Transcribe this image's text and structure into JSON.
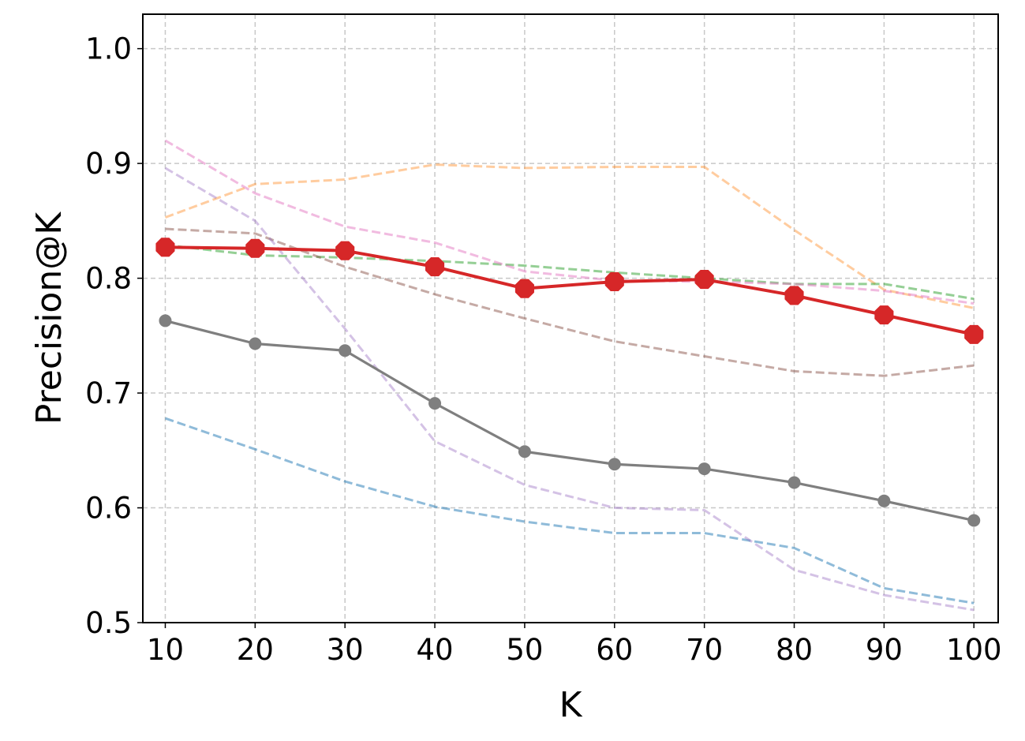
{
  "chart_data": {
    "type": "line",
    "title": "",
    "xlabel": "K",
    "ylabel": "Precision@K",
    "x": [
      10,
      20,
      30,
      40,
      50,
      60,
      70,
      80,
      90,
      100
    ],
    "xlim": [
      7.5,
      102.7
    ],
    "ylim": [
      0.5,
      1.03
    ],
    "xticks": [
      "10",
      "20",
      "30",
      "40",
      "50",
      "60",
      "70",
      "80",
      "90",
      "100"
    ],
    "yticks": [
      "0.5",
      "0.6",
      "0.7",
      "0.8",
      "0.9",
      "1.0"
    ],
    "grid": true,
    "legend": false,
    "series": [
      {
        "color": "#1f77b4",
        "style": "dashed",
        "opacity": 0.5,
        "values": [
          0.678,
          0.651,
          0.623,
          0.601,
          0.588,
          0.578,
          0.578,
          0.565,
          0.53,
          0.517
        ]
      },
      {
        "color": "#ff7f0e",
        "style": "dashed",
        "opacity": 0.4,
        "values": [
          0.853,
          0.882,
          0.886,
          0.899,
          0.896,
          0.897,
          0.897,
          0.842,
          0.79,
          0.774
        ]
      },
      {
        "color": "#2ca02c",
        "style": "dashed",
        "opacity": 0.5,
        "values": [
          0.829,
          0.82,
          0.818,
          0.815,
          0.811,
          0.805,
          0.8,
          0.795,
          0.795,
          0.782
        ]
      },
      {
        "color": "#8c564b",
        "style": "dashed",
        "opacity": 0.5,
        "values": [
          0.843,
          0.839,
          0.81,
          0.786,
          0.765,
          0.745,
          0.732,
          0.719,
          0.715,
          0.724
        ]
      },
      {
        "color": "#9467bd",
        "style": "dashed",
        "opacity": 0.4,
        "values": [
          0.896,
          0.85,
          0.756,
          0.658,
          0.62,
          0.6,
          0.598,
          0.546,
          0.524,
          0.511
        ]
      },
      {
        "color": "#e377c2",
        "style": "dashed",
        "opacity": 0.5,
        "values": [
          0.92,
          0.874,
          0.845,
          0.831,
          0.806,
          0.798,
          0.797,
          0.795,
          0.789,
          0.778
        ]
      },
      {
        "color": "#7f7f7f",
        "style": "solid",
        "marker": "circle",
        "values": [
          0.763,
          0.743,
          0.737,
          0.691,
          0.649,
          0.638,
          0.634,
          0.622,
          0.606,
          0.589
        ]
      },
      {
        "color": "#d62728",
        "style": "solid",
        "marker": "octagon",
        "values": [
          0.827,
          0.826,
          0.824,
          0.81,
          0.791,
          0.797,
          0.799,
          0.785,
          0.768,
          0.751
        ]
      }
    ]
  }
}
